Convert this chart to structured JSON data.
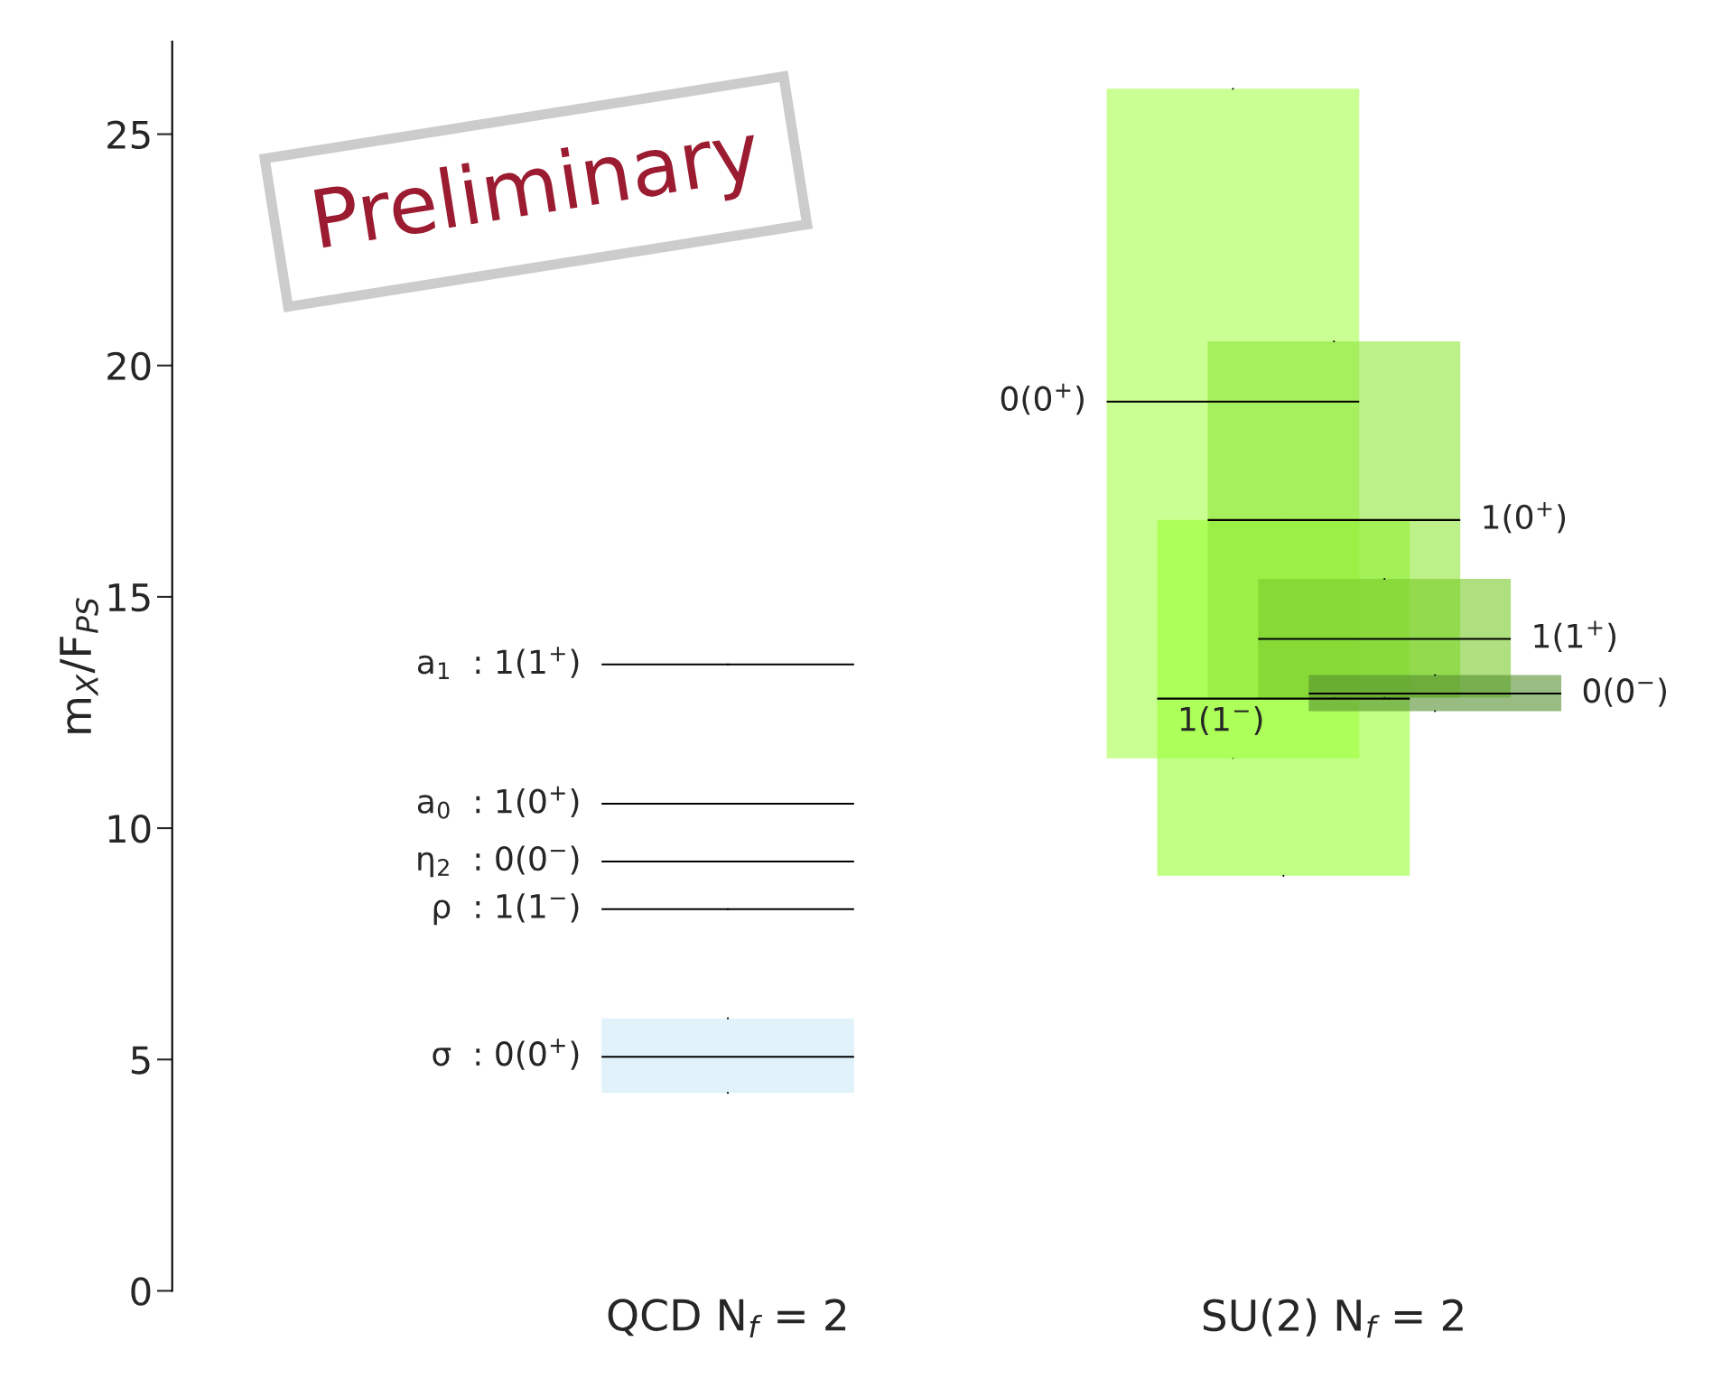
{
  "chart_data": {
    "type": "box",
    "ylabel": "m$_{X}$/F$_{PS}$",
    "categories": [
      "QCD N$_{f}$ = 2",
      "SU(2) N$_{f}$ = 2"
    ],
    "ylim": [
      0,
      27
    ],
    "yticks": [
      0,
      5,
      10,
      15,
      20,
      25
    ],
    "grid": false,
    "legend": false,
    "series": [
      {
        "name": "a$_{1}$  : 1(1$^{+}$)",
        "color": "#000000",
        "boxes": [
          {
            "low": 13.54,
            "q1": 13.54,
            "median": 13.54,
            "q3": 13.54,
            "high": 13.54
          },
          null
        ]
      },
      {
        "name": "a$_{0}$  : 1(0$^{+}$)",
        "color": "#000000",
        "boxes": [
          {
            "low": 10.53,
            "q1": 10.53,
            "median": 10.53,
            "q3": 10.53,
            "high": 10.53
          },
          null
        ]
      },
      {
        "name": "η$_{2}$  : 0(0$^{−}$)",
        "color": "#000000",
        "boxes": [
          {
            "low": 9.28,
            "q1": 9.28,
            "median": 9.28,
            "q3": 9.28,
            "high": 9.28
          },
          null
        ]
      },
      {
        "name": "ρ  : 1(1$^{−}$)",
        "color": "#000000",
        "boxes": [
          {
            "low": 8.25,
            "q1": 8.25,
            "median": 8.25,
            "q3": 8.25,
            "high": 8.25
          },
          null
        ]
      },
      {
        "name": "σ  : 0(0$^{+}$)",
        "color": "#cdeaf6",
        "boxes": [
          {
            "low": 4.28,
            "q1": 4.28,
            "median": 5.06,
            "q3": 5.89,
            "high": 5.89
          },
          null
        ]
      },
      {
        "name": "0(0$^{+}$)",
        "color": "#a6ff4d",
        "boxes": [
          null,
          {
            "low": 11.51,
            "q1": 11.51,
            "median": 19.22,
            "q3": 25.98,
            "high": 25.98
          }
        ]
      },
      {
        "name": "1(1$^{−}$)",
        "color": "#99ff33",
        "boxes": [
          null,
          {
            "low": 8.97,
            "q1": 8.97,
            "median": 12.8,
            "q3": 16.66,
            "high": 16.66
          }
        ]
      },
      {
        "name": "1(0$^{+}$)",
        "color": "#8fe638",
        "boxes": [
          null,
          {
            "low": 12.82,
            "q1": 12.82,
            "median": 16.66,
            "q3": 20.52,
            "high": 20.52
          }
        ]
      },
      {
        "name": "1(1$^{+}$)",
        "color": "#7acc29",
        "boxes": [
          null,
          {
            "low": 12.82,
            "q1": 12.82,
            "median": 14.09,
            "q3": 15.39,
            "high": 15.39
          }
        ]
      },
      {
        "name": "0(0$^{−}$)",
        "color": "#558f2e",
        "boxes": [
          null,
          {
            "low": 12.53,
            "q1": 12.53,
            "median": 12.91,
            "q3": 13.31,
            "high": 13.31
          }
        ]
      }
    ],
    "annotations": [
      "Preliminary"
    ]
  }
}
